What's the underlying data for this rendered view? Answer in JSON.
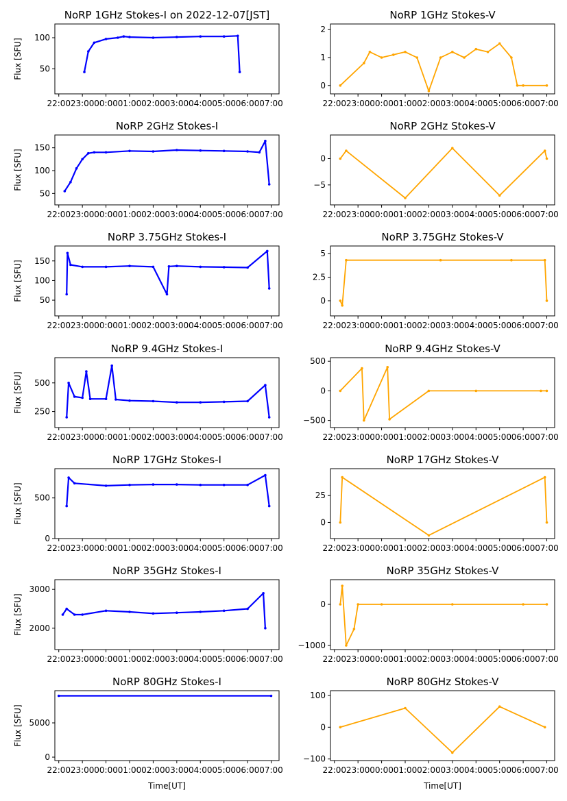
{
  "figure": {
    "x_tick_labels": [
      "22:00",
      "23:00",
      "00:00",
      "01:00",
      "02:00",
      "03:00",
      "04:00",
      "05:00",
      "06:00",
      "07:00"
    ],
    "xlabel": "Time[UT]",
    "colors": {
      "stokes_i": "#0000ff",
      "stokes_v": "#ffa500"
    }
  },
  "chart_data": [
    {
      "type": "scatter",
      "title": "NoRP 1GHz Stokes-I on 2022-12-07[JST]",
      "ylabel": "Flux [SFU]",
      "xlabel": "",
      "ylim": [
        10,
        122
      ],
      "yticks": [
        50,
        100
      ],
      "x": [
        "23:05",
        "23:15",
        "23:30",
        "00:00",
        "00:30",
        "00:45",
        "01:00",
        "02:00",
        "03:00",
        "04:00",
        "05:00",
        "05:35",
        "05:40"
      ],
      "values": [
        45,
        78,
        92,
        98,
        100,
        102,
        101,
        100,
        101,
        102,
        102,
        103,
        45
      ]
    },
    {
      "type": "scatter",
      "title": "NoRP 1GHz Stokes-V",
      "ylabel": "",
      "xlabel": "",
      "ylim": [
        -0.3,
        2.2
      ],
      "yticks": [
        0,
        1,
        2
      ],
      "x": [
        "22:15",
        "23:15",
        "23:30",
        "00:00",
        "00:30",
        "01:00",
        "01:30",
        "02:00",
        "02:30",
        "03:00",
        "03:30",
        "04:00",
        "04:30",
        "05:00",
        "05:30",
        "05:45",
        "06:00",
        "07:00"
      ],
      "values": [
        0,
        0.8,
        1.2,
        1.0,
        1.1,
        1.2,
        1.0,
        -0.2,
        1.0,
        1.2,
        1.0,
        1.3,
        1.2,
        1.5,
        1.0,
        0,
        0,
        0
      ]
    },
    {
      "type": "scatter",
      "title": "NoRP 2GHz Stokes-I",
      "ylabel": "Flux [SFU]",
      "xlabel": "",
      "ylim": [
        25,
        178
      ],
      "yticks": [
        50,
        100,
        150
      ],
      "x": [
        "22:15",
        "22:30",
        "22:45",
        "23:00",
        "23:15",
        "23:30",
        "00:00",
        "01:00",
        "02:00",
        "03:00",
        "04:00",
        "05:00",
        "06:00",
        "06:30",
        "06:45",
        "06:55"
      ],
      "values": [
        55,
        75,
        105,
        125,
        138,
        140,
        140,
        143,
        142,
        145,
        144,
        143,
        142,
        140,
        165,
        70
      ]
    },
    {
      "type": "scatter",
      "title": "NoRP 2GHz Stokes-V",
      "ylabel": "",
      "xlabel": "",
      "ylim": [
        -8.8,
        4.5
      ],
      "yticks": [
        -5,
        0
      ],
      "x": [
        "22:15",
        "22:30",
        "01:00",
        "03:00",
        "05:00",
        "06:55",
        "07:00"
      ],
      "values": [
        0,
        1.5,
        -7.5,
        2.0,
        -7.0,
        1.5,
        0
      ]
    },
    {
      "type": "scatter",
      "title": "NoRP 3.75GHz Stokes-I",
      "ylabel": "Flux [SFU]",
      "xlabel": "",
      "ylim": [
        10,
        188
      ],
      "yticks": [
        50,
        100,
        150
      ],
      "x": [
        "22:20",
        "22:22",
        "22:30",
        "23:00",
        "00:00",
        "01:00",
        "02:00",
        "02:35",
        "02:40",
        "03:00",
        "04:00",
        "05:00",
        "06:00",
        "06:50",
        "06:55"
      ],
      "values": [
        65,
        170,
        140,
        135,
        135,
        137,
        135,
        65,
        136,
        137,
        135,
        134,
        133,
        175,
        80
      ]
    },
    {
      "type": "scatter",
      "title": "NoRP 3.75GHz Stokes-V",
      "ylabel": "",
      "xlabel": "",
      "ylim": [
        -1.6,
        5.8
      ],
      "yticks": [
        0.0,
        2.5,
        5.0
      ],
      "x": [
        "22:15",
        "22:20",
        "22:30",
        "02:30",
        "05:30",
        "06:55",
        "07:00"
      ],
      "values": [
        0,
        -0.5,
        4.3,
        4.3,
        4.3,
        4.3,
        0
      ]
    },
    {
      "type": "scatter",
      "title": "NoRP 9.4GHz Stokes-I",
      "ylabel": "Flux [SFU]",
      "xlabel": "",
      "ylim": [
        110,
        720
      ],
      "yticks": [
        250,
        500
      ],
      "x": [
        "22:20",
        "22:25",
        "22:40",
        "23:00",
        "23:10",
        "23:20",
        "00:00",
        "00:15",
        "00:25",
        "01:00",
        "02:00",
        "03:00",
        "04:00",
        "05:00",
        "06:00",
        "06:45",
        "06:55"
      ],
      "values": [
        200,
        500,
        380,
        370,
        600,
        360,
        360,
        650,
        355,
        345,
        340,
        330,
        330,
        335,
        340,
        480,
        200
      ]
    },
    {
      "type": "scatter",
      "title": "NoRP 9.4GHz Stokes-V",
      "ylabel": "",
      "xlabel": "",
      "ylim": [
        -620,
        560
      ],
      "yticks": [
        -500,
        0,
        500
      ],
      "x": [
        "22:15",
        "23:10",
        "23:15",
        "00:15",
        "00:20",
        "02:00",
        "04:00",
        "06:45",
        "07:00"
      ],
      "values": [
        0,
        380,
        -500,
        400,
        -480,
        0,
        0,
        0,
        0
      ]
    },
    {
      "type": "scatter",
      "title": "NoRP 17GHz Stokes-I",
      "ylabel": "Flux [SFU]",
      "xlabel": "",
      "ylim": [
        0,
        860
      ],
      "yticks": [
        0,
        500
      ],
      "x": [
        "22:20",
        "22:25",
        "22:40",
        "00:00",
        "01:00",
        "02:00",
        "03:00",
        "04:00",
        "05:00",
        "06:00",
        "06:45",
        "06:55"
      ],
      "values": [
        400,
        750,
        680,
        650,
        660,
        665,
        665,
        660,
        660,
        660,
        780,
        400
      ]
    },
    {
      "type": "scatter",
      "title": "NoRP 17GHz Stokes-V",
      "ylabel": "",
      "xlabel": "",
      "ylim": [
        -15,
        50
      ],
      "yticks": [
        0,
        25
      ],
      "x": [
        "22:15",
        "22:20",
        "02:00",
        "06:55",
        "07:00"
      ],
      "values": [
        0,
        42,
        -12,
        42,
        0
      ]
    },
    {
      "type": "scatter",
      "title": "NoRP 35GHz Stokes-I",
      "ylabel": "Flux [SFU]",
      "xlabel": "",
      "ylim": [
        1450,
        3250
      ],
      "yticks": [
        2000,
        3000
      ],
      "x": [
        "22:10",
        "22:20",
        "22:40",
        "23:00",
        "00:00",
        "01:00",
        "02:00",
        "03:00",
        "04:00",
        "05:00",
        "06:00",
        "06:40",
        "06:45"
      ],
      "values": [
        2350,
        2500,
        2350,
        2350,
        2450,
        2420,
        2380,
        2400,
        2420,
        2450,
        2500,
        2900,
        2000
      ]
    },
    {
      "type": "scatter",
      "title": "NoRP 35GHz Stokes-V",
      "ylabel": "",
      "xlabel": "",
      "ylim": [
        -1100,
        600
      ],
      "yticks": [
        -1000,
        0
      ],
      "x": [
        "22:15",
        "22:20",
        "22:30",
        "22:50",
        "23:00",
        "00:00",
        "03:00",
        "06:00",
        "07:00"
      ],
      "values": [
        0,
        450,
        -1000,
        -600,
        0,
        0,
        0,
        0,
        0
      ]
    },
    {
      "type": "scatter",
      "title": "NoRP 80GHz Stokes-I",
      "ylabel": "Flux [SFU]",
      "xlabel": "Time[UT]",
      "ylim": [
        -500,
        9700
      ],
      "yticks": [
        0,
        5000
      ],
      "x": [
        "22:00",
        "07:00"
      ],
      "values": [
        8950,
        8950
      ]
    },
    {
      "type": "scatter",
      "title": "NoRP 80GHz Stokes-V",
      "ylabel": "",
      "xlabel": "Time[UT]",
      "ylim": [
        -105,
        115
      ],
      "yticks": [
        -100,
        0,
        100
      ],
      "x": [
        "22:15",
        "01:00",
        "03:00",
        "05:00",
        "06:55"
      ],
      "values": [
        0,
        60,
        -80,
        65,
        0
      ]
    }
  ]
}
